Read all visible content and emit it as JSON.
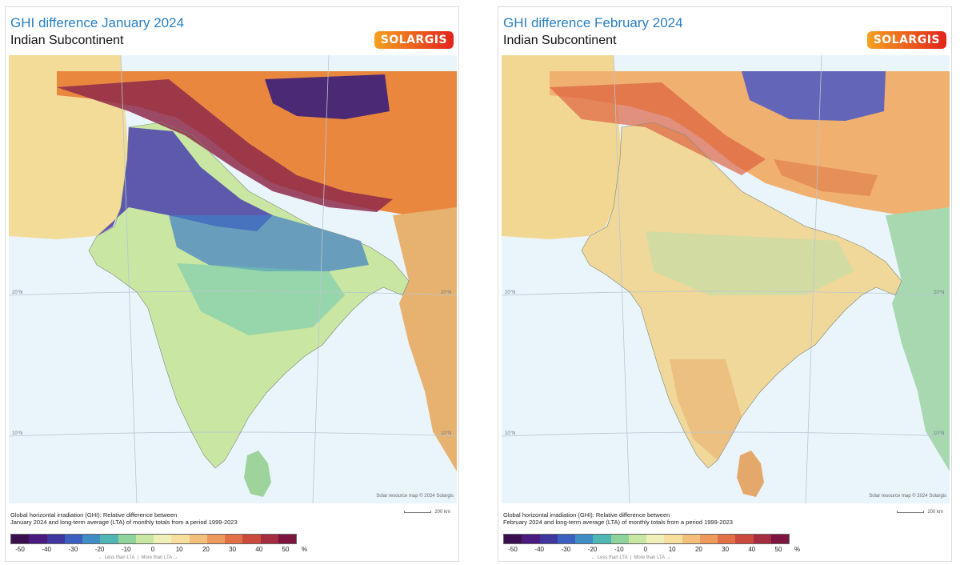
{
  "panels": [
    {
      "title": "GHI difference January 2024",
      "subtitle": "Indian Subcontinent",
      "logo": "SOLARGIS",
      "credit": "Solar resource map © 2024 Solargis",
      "scale": "200 km",
      "caption": [
        "Global horizontal irradiation (GHI): Relative difference between",
        "January 2024 and long-term average (LTA) of monthly totals from a period 1999-2023"
      ],
      "lat_labels": [
        "20°N",
        "10°N"
      ],
      "pattern": "january"
    },
    {
      "title": "GHI difference February 2024",
      "subtitle": "Indian Subcontinent",
      "logo": "SOLARGIS",
      "credit": "Solar resource map © 2024 Solargis",
      "scale": "200 km",
      "caption": [
        "Global horizontal irradiation (GHI): Relative difference between",
        "February 2024 and long-term average (LTA) of monthly totals from a period 1999-2023"
      ],
      "lat_labels": [
        "20°N",
        "10°N"
      ],
      "pattern": "february"
    }
  ],
  "legend": {
    "ticks": [
      "-50",
      "-40",
      "-30",
      "-20",
      "-10",
      "0",
      "10",
      "20",
      "30",
      "40",
      "50"
    ],
    "unit": "%",
    "less_label": "← Less than LTA",
    "more_label": "More than LTA →"
  },
  "colors": {
    "title": "#2a7fc1",
    "ocean": "#eaf4fb",
    "logo_start": "#f6a020",
    "logo_end": "#e2241d",
    "scale": [
      "#3b0f4f",
      "#4a1a80",
      "#3f36a0",
      "#3a5fc0",
      "#3f8dc4",
      "#4fb6b4",
      "#8dd39b",
      "#c8e7a2",
      "#eef0b8",
      "#f6df9c",
      "#f2c07a",
      "#ee9a5c",
      "#e26f45",
      "#cc4a3c",
      "#a62d40",
      "#7e1440"
    ]
  }
}
